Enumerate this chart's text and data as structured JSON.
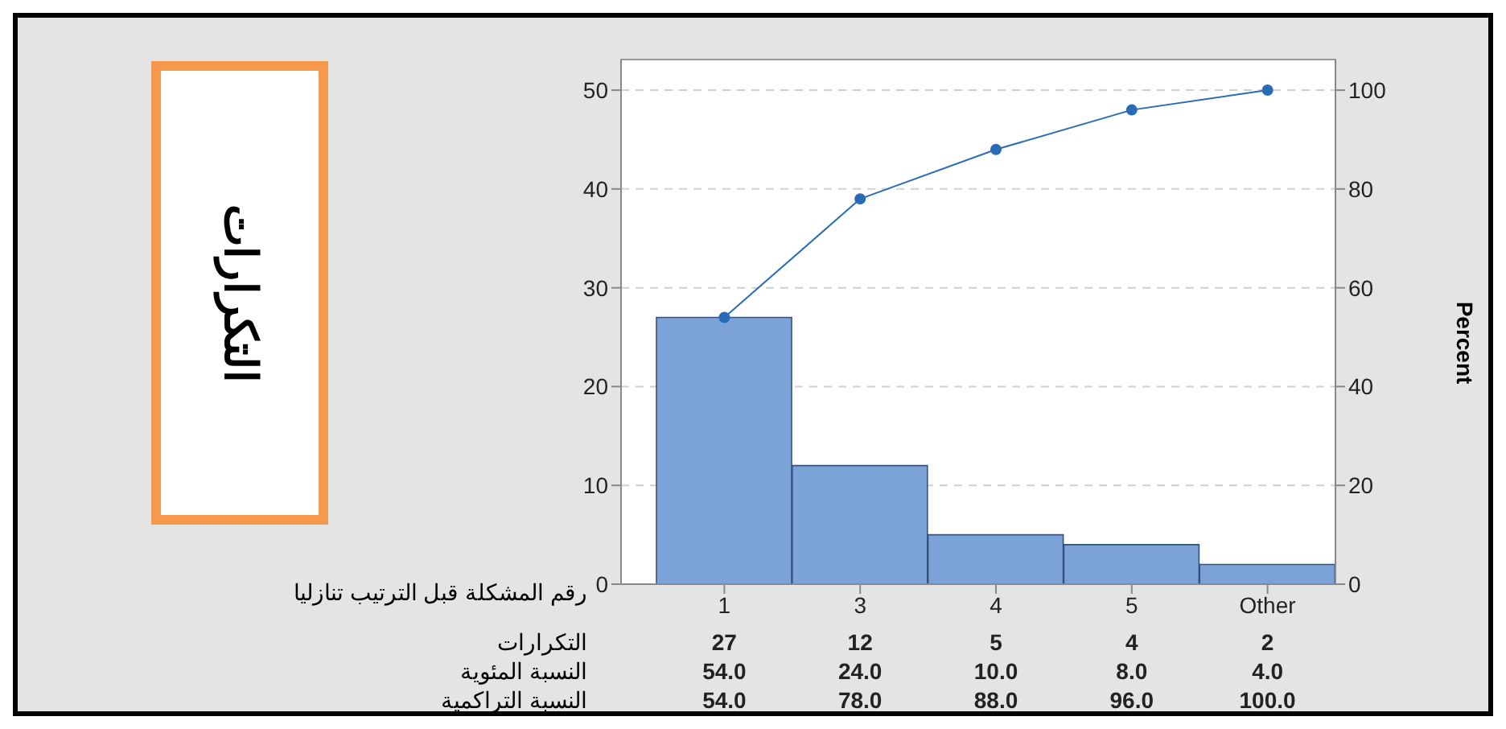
{
  "chart_data": {
    "type": "bar",
    "xlabel": "رقم المشكلة قبل الترتيب تنازليا",
    "y2label": "Percent",
    "categories": [
      "1",
      "3",
      "4",
      "5",
      "Other"
    ],
    "series": [
      {
        "color": "#7ba3d8",
        "values": [
          27,
          12,
          5,
          4,
          2
        ],
        "value_labels": [
          "27",
          "12",
          "5",
          "4",
          "2"
        ]
      },
      {
        "type": "line",
        "axis": "y2",
        "color": "#2a6bb5",
        "values": [
          54,
          78,
          88,
          96,
          100
        ],
        "value_labels": [
          "54.0",
          "78.0",
          "88.0",
          "96.0",
          "100.0"
        ]
      }
    ],
    "annotations": [
      "التكرارات",
      "التكرارات",
      "النسبة المئوية",
      "النسبة التراكمية",
      "54.0",
      "24.0",
      "10.0",
      "8.0",
      "4.0"
    ],
    "ylim": [
      0,
      53.1
    ],
    "yticks": [
      0,
      10,
      20,
      30,
      40,
      50
    ],
    "y2lim": [
      0,
      106.2
    ],
    "y2ticks": [
      0,
      20,
      40,
      60,
      80,
      100
    ],
    "grid": "y",
    "marker": "circle",
    "line_style": "solid"
  }
}
